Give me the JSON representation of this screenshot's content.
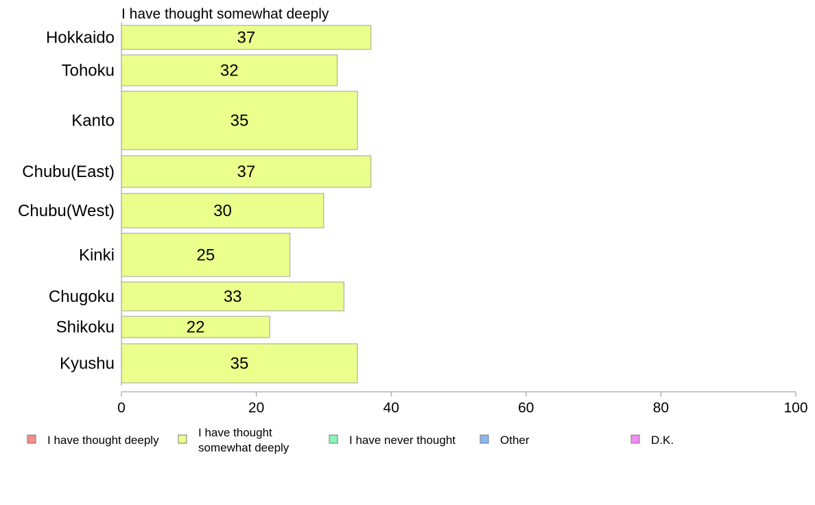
{
  "chart_data": {
    "type": "bar",
    "orientation": "horizontal",
    "title": "I have thought somewhat deeply",
    "categories": [
      "Hokkaido",
      "Tohoku",
      "Kanto",
      "Chubu(East)",
      "Chubu(West)",
      "Kinki",
      "Chugoku",
      "Shikoku",
      "Kyushu"
    ],
    "series": [
      {
        "name": "I have thought somewhat deeply",
        "values": [
          37,
          32,
          35,
          37,
          30,
          25,
          33,
          22,
          35
        ]
      }
    ],
    "xlim": [
      0,
      100
    ],
    "xticks": [
      0,
      20,
      40,
      60,
      80,
      100
    ],
    "grid": false,
    "bar_color": "#ebff8c",
    "bar_edge_color": "#a0a0a0",
    "legend": {
      "placement": "bottom",
      "items": [
        {
          "label": "I have thought deeply",
          "color": "#f68b8b"
        },
        {
          "label": "I have thought somewhat deeply",
          "label_lines": [
            "I have thought",
            "somewhat deeply"
          ],
          "color": "#ebff8c"
        },
        {
          "label": "I have never thought",
          "color": "#8bf5b8"
        },
        {
          "label": "Other",
          "color": "#8bb8f5"
        },
        {
          "label": "D.K.",
          "color": "#f08bf5"
        }
      ]
    }
  }
}
